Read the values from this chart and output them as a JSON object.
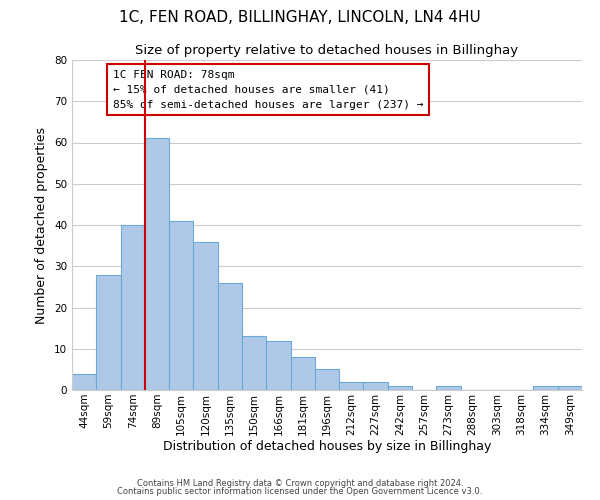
{
  "title": "1C, FEN ROAD, BILLINGHAY, LINCOLN, LN4 4HU",
  "subtitle": "Size of property relative to detached houses in Billinghay",
  "xlabel": "Distribution of detached houses by size in Billinghay",
  "ylabel": "Number of detached properties",
  "bar_labels": [
    "44sqm",
    "59sqm",
    "74sqm",
    "89sqm",
    "105sqm",
    "120sqm",
    "135sqm",
    "150sqm",
    "166sqm",
    "181sqm",
    "196sqm",
    "212sqm",
    "227sqm",
    "242sqm",
    "257sqm",
    "273sqm",
    "288sqm",
    "303sqm",
    "318sqm",
    "334sqm",
    "349sqm"
  ],
  "bar_values": [
    4,
    28,
    40,
    61,
    41,
    36,
    26,
    13,
    12,
    8,
    5,
    2,
    2,
    1,
    0,
    1,
    0,
    0,
    0,
    1,
    1
  ],
  "bar_color": "#aec9e8",
  "bar_edge_color": "#6aaad4",
  "vline_color": "#cc0000",
  "vline_x_index": 3,
  "ylim": [
    0,
    80
  ],
  "yticks": [
    0,
    10,
    20,
    30,
    40,
    50,
    60,
    70,
    80
  ],
  "annotation_title": "1C FEN ROAD: 78sqm",
  "annotation_line1": "← 15% of detached houses are smaller (41)",
  "annotation_line2": "85% of semi-detached houses are larger (237) →",
  "footer1": "Contains HM Land Registry data © Crown copyright and database right 2024.",
  "footer2": "Contains public sector information licensed under the Open Government Licence v3.0.",
  "background_color": "#ffffff",
  "grid_color": "#cccccc",
  "title_fontsize": 11,
  "subtitle_fontsize": 9.5,
  "xlabel_fontsize": 9,
  "ylabel_fontsize": 9,
  "tick_fontsize": 7.5,
  "annotation_fontsize": 8,
  "footer_fontsize": 6
}
